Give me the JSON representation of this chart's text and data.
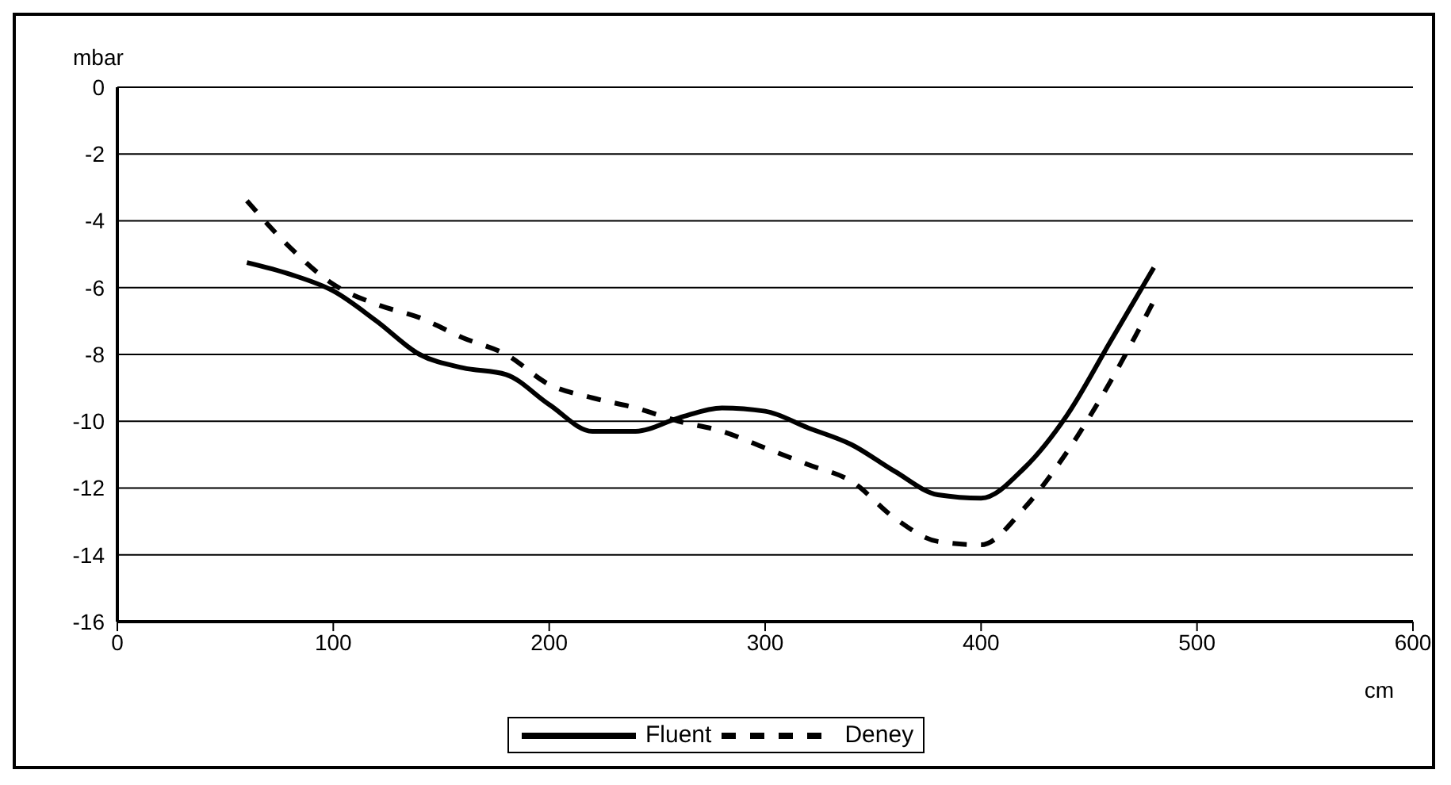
{
  "chart_data": {
    "type": "line",
    "xlabel": "cm",
    "ylabel": "mbar",
    "x": [
      60,
      80,
      100,
      120,
      140,
      160,
      180,
      200,
      220,
      240,
      260,
      280,
      300,
      320,
      340,
      360,
      380,
      400,
      420,
      440,
      460,
      480
    ],
    "series": [
      {
        "name": "Fluent",
        "color": "#000000",
        "line_style": "solid",
        "values": [
          -5.25,
          -5.6,
          -6.1,
          -7.0,
          -8.0,
          -8.4,
          -8.6,
          -9.5,
          -10.3,
          -10.3,
          -9.9,
          -9.6,
          -9.7,
          -10.2,
          -10.7,
          -11.5,
          -12.2,
          -12.3,
          -11.4,
          -9.8,
          -7.6,
          -5.4
        ]
      },
      {
        "name": "Deney",
        "color": "#000000",
        "line_style": "dashed",
        "values": [
          -3.4,
          -4.8,
          -5.9,
          -6.5,
          -6.9,
          -7.5,
          -8.0,
          -8.9,
          -9.3,
          -9.6,
          -10.0,
          -10.3,
          -10.8,
          -11.3,
          -11.8,
          -12.9,
          -13.6,
          -13.7,
          -12.6,
          -10.9,
          -8.8,
          -6.4
        ]
      }
    ],
    "xlim": [
      0,
      600
    ],
    "xticks": [
      0,
      100,
      200,
      300,
      400,
      500,
      600
    ],
    "ylim": [
      -16,
      0
    ],
    "yticks": [
      -16,
      -14,
      -12,
      -10,
      -8,
      -6,
      -4,
      -2,
      0
    ],
    "grid": "y",
    "legend": "bottom",
    "marker": "none"
  }
}
